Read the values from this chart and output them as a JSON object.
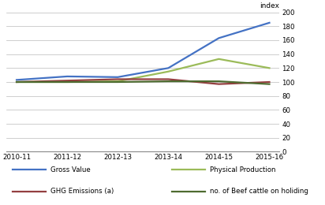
{
  "years": [
    "2010-11",
    "2011-12",
    "2012-13",
    "2013-14",
    "2014-15",
    "2015-16"
  ],
  "gross_value": [
    103,
    108,
    107,
    120,
    163,
    185
  ],
  "physical_production": [
    100,
    100,
    101,
    115,
    133,
    120
  ],
  "ghg_emissions": [
    100,
    102,
    104,
    104,
    97,
    100
  ],
  "beef_cattle": [
    100,
    100,
    100,
    101,
    101,
    97
  ],
  "gross_value_color": "#4472C4",
  "physical_production_color": "#9BBB59",
  "ghg_emissions_color": "#943F40",
  "beef_cattle_color": "#4E6B30",
  "ylim": [
    0,
    200
  ],
  "yticks": [
    0,
    20,
    40,
    60,
    80,
    100,
    120,
    140,
    160,
    180,
    200
  ],
  "ylabel": "index",
  "background_color": "#FFFFFF",
  "grid_color": "#BBBBBB",
  "legend_labels": [
    "Gross Value",
    "Physical Production",
    "GHG Emissions (a)",
    "no. of Beef cattle on holiding"
  ]
}
